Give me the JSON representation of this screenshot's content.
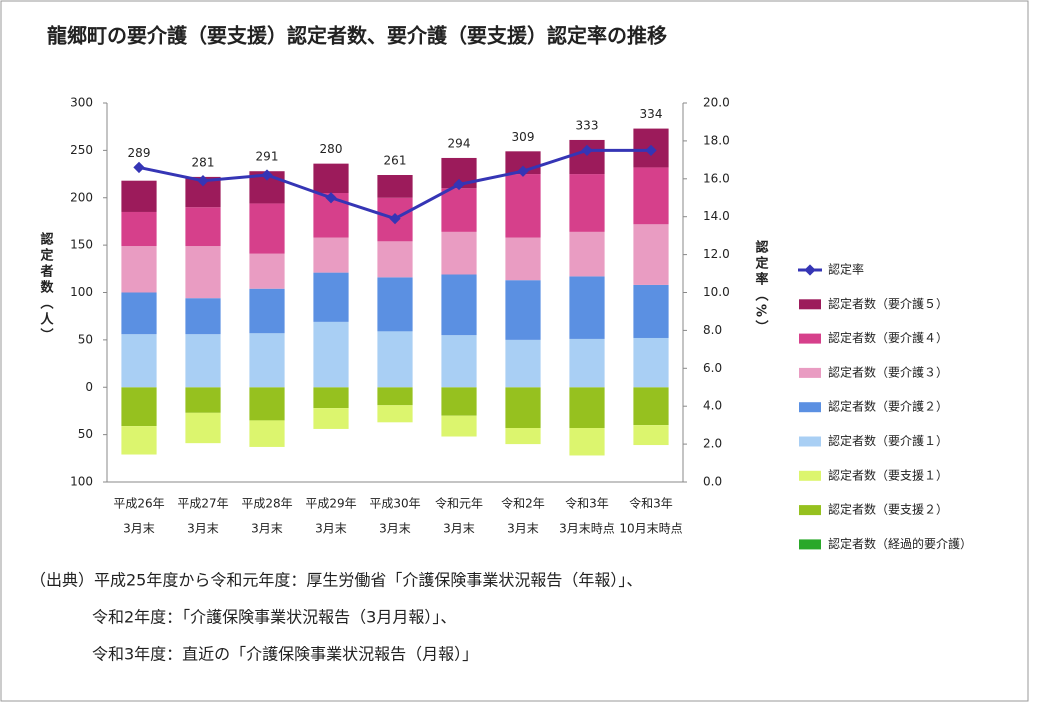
{
  "chart_data": {
    "type": "bar",
    "title": "龍郷町の要介護（要支援）認定者数、要介護（要支援）認定率の推移",
    "y_label": "認定者数（人）",
    "y2_label": "認定率（%）",
    "categories": [
      [
        "平成26年",
        "3月末"
      ],
      [
        "平成27年",
        "3月末"
      ],
      [
        "平成28年",
        "3月末"
      ],
      [
        "平成29年",
        "3月末"
      ],
      [
        "平成30年",
        "3月末"
      ],
      [
        "令和元年",
        "3月末"
      ],
      [
        "令和2年",
        "3月末"
      ],
      [
        "令和3年",
        "3月末時点"
      ],
      [
        "令和3年",
        "10月末時点"
      ]
    ],
    "ylim": [
      -100,
      300
    ],
    "yticks": [
      {
        "value": -100,
        "label": "100"
      },
      {
        "value": -50,
        "label": "50"
      },
      0,
      50,
      100,
      150,
      200,
      250,
      300
    ],
    "y2lim": [
      0,
      20
    ],
    "y2ticks": [
      {
        "value": 0,
        "label": "0.0"
      },
      {
        "value": 2,
        "label": "2.0"
      },
      {
        "value": 4,
        "label": "4.0"
      },
      {
        "value": 6,
        "label": "6.0"
      },
      {
        "value": 8,
        "label": "8.0"
      },
      {
        "value": 10,
        "label": "10.0"
      },
      {
        "value": 12,
        "label": "12.0"
      },
      {
        "value": 14,
        "label": "14.0"
      },
      {
        "value": 16,
        "label": "16.0"
      },
      {
        "value": 18,
        "label": "18.0"
      },
      {
        "value": 20,
        "label": "20.0"
      }
    ],
    "grid": false,
    "series": [
      {
        "name": "認定者数（経過的要介護）",
        "color": "#2aa82a",
        "values": [
          0,
          0,
          0,
          0,
          0,
          0,
          0,
          0,
          0
        ]
      },
      {
        "name": "認定者数（要支援２）",
        "color": "#96c11f",
        "values": [
          -41,
          -27,
          -35,
          -22,
          -19,
          -30,
          -43,
          -43,
          -40
        ]
      },
      {
        "name": "認定者数（要支援１）",
        "color": "#dcf56e",
        "values": [
          -30,
          -32,
          -28,
          -22,
          -18,
          -22,
          -17,
          -29,
          -21
        ]
      },
      {
        "name": "認定者数（要介護１）",
        "color": "#a9cff4",
        "values": [
          56,
          56,
          57,
          69,
          59,
          55,
          50,
          51,
          52
        ]
      },
      {
        "name": "認定者数（要介護２）",
        "color": "#5b90e2",
        "values": [
          44,
          38,
          47,
          52,
          57,
          64,
          63,
          66,
          56
        ]
      },
      {
        "name": "認定者数（要介護３）",
        "color": "#e99cc2",
        "values": [
          49,
          55,
          37,
          37,
          38,
          45,
          45,
          47,
          64
        ]
      },
      {
        "name": "認定者数（要介護４）",
        "color": "#d6408b",
        "values": [
          36,
          41,
          53,
          47,
          46,
          46,
          67,
          61,
          60
        ]
      },
      {
        "name": "認定者数（要介護５）",
        "color": "#9c1b5b",
        "values": [
          33,
          32,
          34,
          31,
          24,
          32,
          24,
          36,
          41
        ]
      },
      {
        "name": "認定率",
        "color": "#3535b5",
        "type": "line",
        "axis": "y2",
        "values": [
          16.6,
          15.9,
          16.2,
          15.0,
          13.9,
          15.7,
          16.4,
          17.5,
          17.5
        ]
      }
    ],
    "totals": [
      289,
      281,
      291,
      280,
      261,
      294,
      309,
      333,
      334
    ],
    "source": [
      "（出典）平成25年度から令和元年度：厚生労働省「介護保険事業状況報告（年報）」、",
      "令和2年度：「介護保険事業状況報告（3月月報）」、",
      "令和3年度：直近の「介護保険事業状況報告（月報）」"
    ]
  }
}
